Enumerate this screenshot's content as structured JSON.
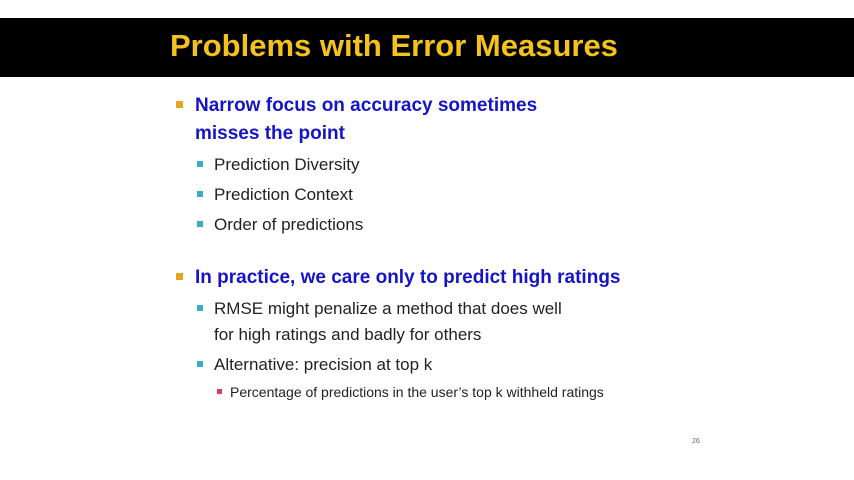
{
  "title": "Problems with Error Measures",
  "bullets": [
    {
      "text": "Narrow focus on accuracy sometimes misses the point",
      "line1": "Narrow focus on accuracy sometimes",
      "line2": "misses the point",
      "children": [
        {
          "text": "Prediction Diversity"
        },
        {
          "text": "Prediction Context"
        },
        {
          "text": "Order of predictions"
        }
      ]
    },
    {
      "text": "In practice, we care only to predict high ratings",
      "children": [
        {
          "line1": "RMSE might penalize a method that does well",
          "line2": "for high ratings and badly for others"
        },
        {
          "text": "Alternative: precision at top k",
          "children": [
            {
              "text": "Percentage of predictions in the user’s top k withheld ratings"
            }
          ]
        }
      ]
    }
  ],
  "slide_number": "26",
  "colors": {
    "title_bar": "#000000",
    "title_text": "#f4c21a",
    "level1_text": "#1515c8",
    "level1_bullet": "#e6a51e",
    "level2_bullet": "#40a9c9",
    "level3_bullet": "#d83c62"
  }
}
